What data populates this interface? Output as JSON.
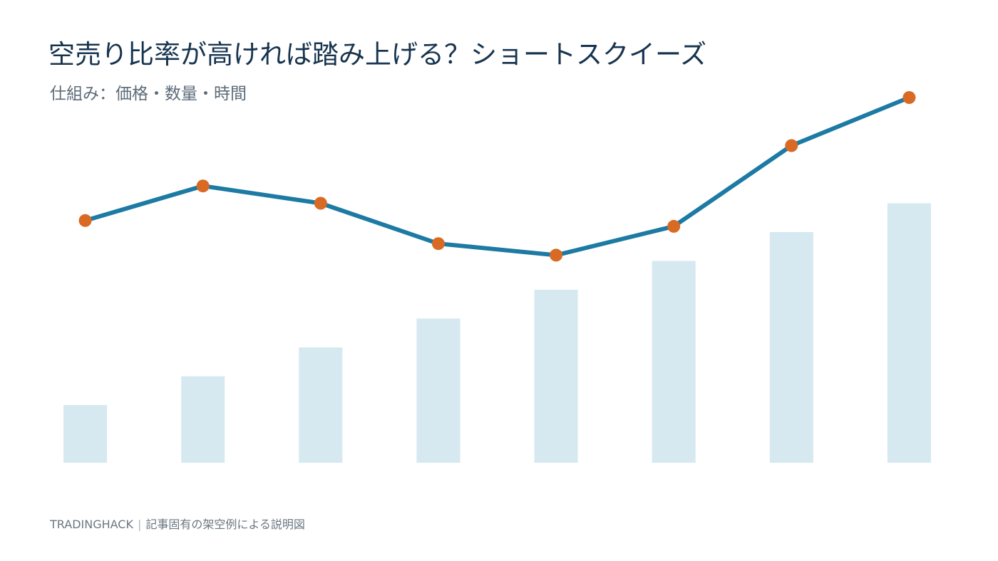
{
  "header": {
    "title": "空売り比率が高ければ踏み上げる？ショートスクイーズ",
    "subtitle": "仕組み：価格・数量・時間"
  },
  "footer": {
    "brand": "TRADINGHACK",
    "separator": "|",
    "note": "記事固有の架空例による説明図"
  },
  "colors": {
    "bar": "#d6e8f0",
    "line": "#1c7aa3",
    "marker": "#d86a24",
    "title": "#17344f"
  },
  "chart_data": {
    "type": "bar+line",
    "title": "空売り比率が高ければ踏み上げる？ショートスクイーズ",
    "subtitle": "仕組み：価格・数量・時間",
    "xlabel": "",
    "ylabel": "",
    "grid": false,
    "legend": "none",
    "ylim": [
      0,
      100
    ],
    "x": [
      1,
      2,
      3,
      4,
      5,
      6,
      7,
      8
    ],
    "series": [
      {
        "type": "bar",
        "values": [
          15,
          22.5,
          30,
          37.5,
          45,
          52.5,
          60,
          67.5
        ]
      },
      {
        "type": "line",
        "values": [
          63,
          72,
          67.5,
          57,
          54,
          61.5,
          82.5,
          95
        ]
      }
    ]
  }
}
